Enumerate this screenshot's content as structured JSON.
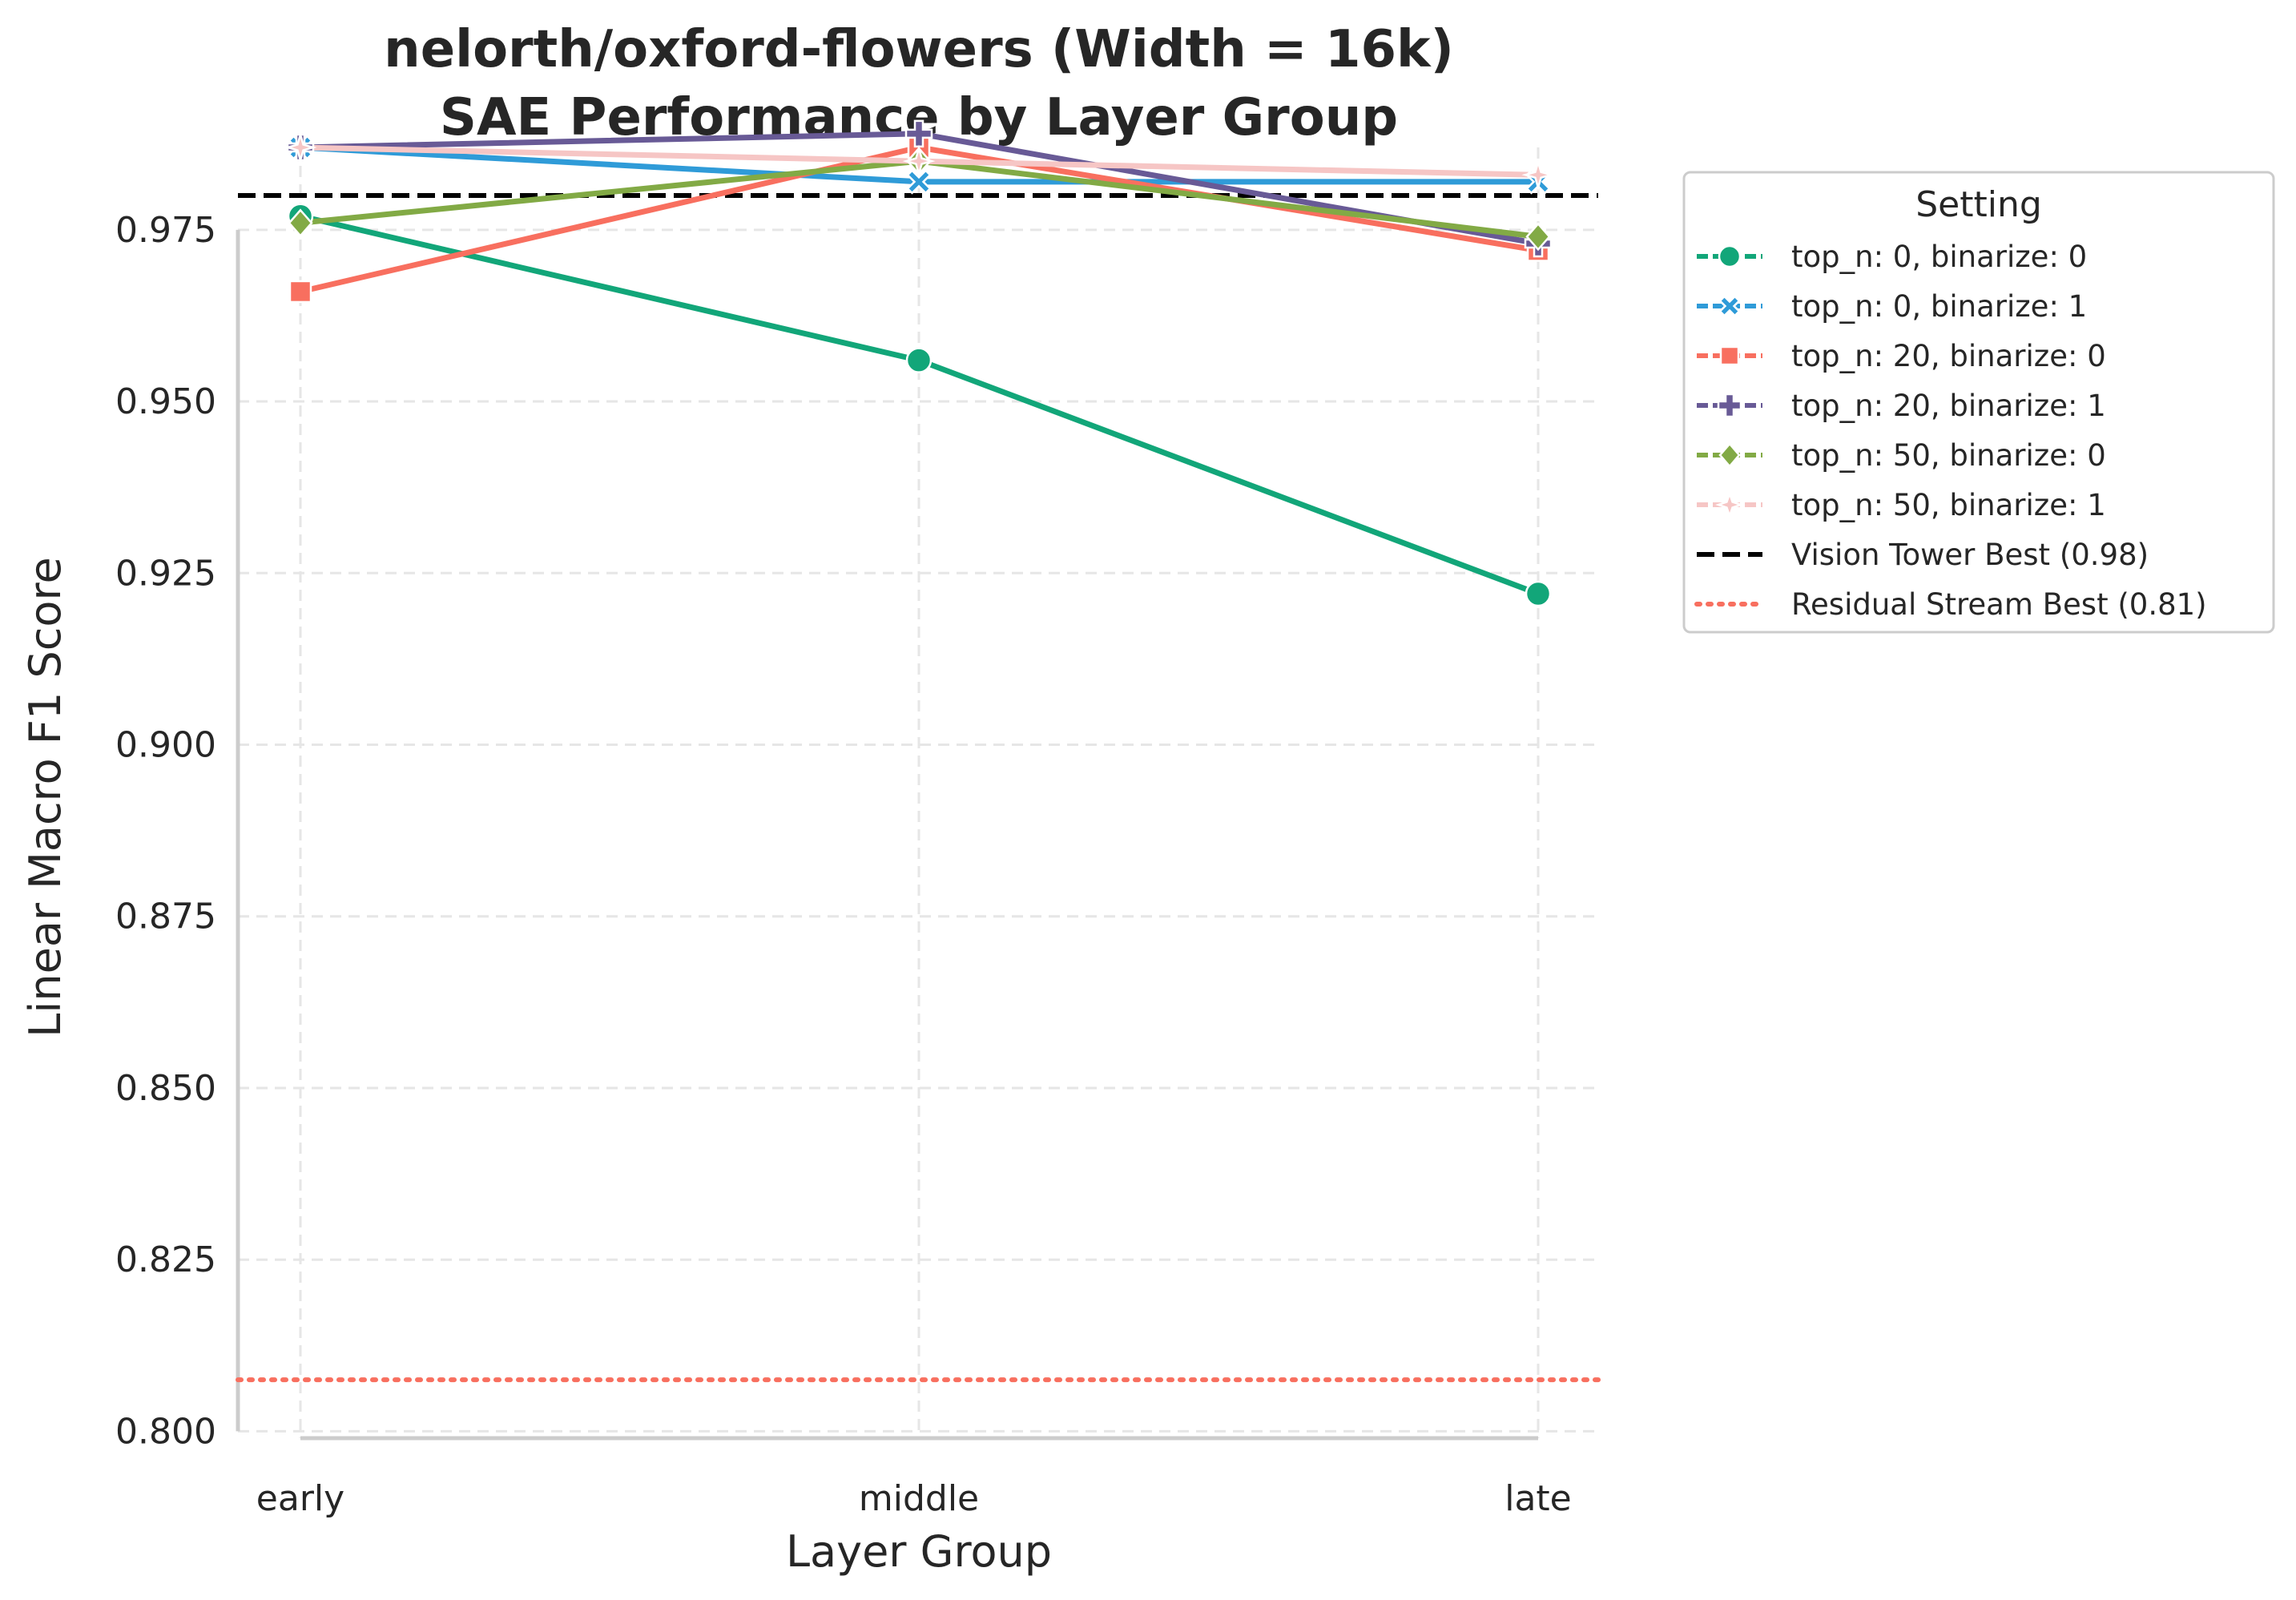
{
  "chart_data": {
    "type": "line",
    "title": "nelorth/oxford-flowers (Width = 16k)",
    "subtitle": "SAE Performance by Layer Group",
    "xlabel": "Layer Group",
    "ylabel": "Linear Macro F1 Score",
    "categories": [
      "early",
      "middle",
      "late"
    ],
    "ylim": [
      0.799,
      0.987
    ],
    "yticks": [
      "0.800",
      "0.825",
      "0.850",
      "0.875",
      "0.900",
      "0.925",
      "0.950",
      "0.975"
    ],
    "grid": true,
    "legend": {
      "title": "Setting",
      "placement": "outside-right-top"
    },
    "series": [
      {
        "name": "top_n: 0, binarize: 0",
        "color": "#12a679",
        "marker": "circle",
        "values": [
          0.977,
          0.956,
          0.922
        ]
      },
      {
        "name": "top_n: 0, binarize: 1",
        "color": "#2f9bd8",
        "marker": "x",
        "values": [
          0.987,
          0.982,
          0.982
        ]
      },
      {
        "name": "top_n: 20, binarize: 0",
        "color": "#f86f5f",
        "marker": "square",
        "values": [
          0.966,
          0.987,
          0.972
        ]
      },
      {
        "name": "top_n: 20, binarize: 1",
        "color": "#685a96",
        "marker": "plus",
        "values": [
          0.987,
          0.989,
          0.973
        ]
      },
      {
        "name": "top_n: 50, binarize: 0",
        "color": "#82aa45",
        "marker": "diamond",
        "values": [
          0.976,
          0.985,
          0.974
        ]
      },
      {
        "name": "top_n: 50, binarize: 1",
        "color": "#f6c6c5",
        "marker": "star",
        "values": [
          0.987,
          0.985,
          0.983
        ]
      }
    ],
    "reference_lines": [
      {
        "name": "Vision Tower Best (0.98)",
        "value": 0.98,
        "color": "#000000",
        "style": "dashed"
      },
      {
        "name": "Residual Stream Best (0.81)",
        "value": 0.8075,
        "color": "#f86f5f",
        "style": "dotted"
      }
    ]
  }
}
